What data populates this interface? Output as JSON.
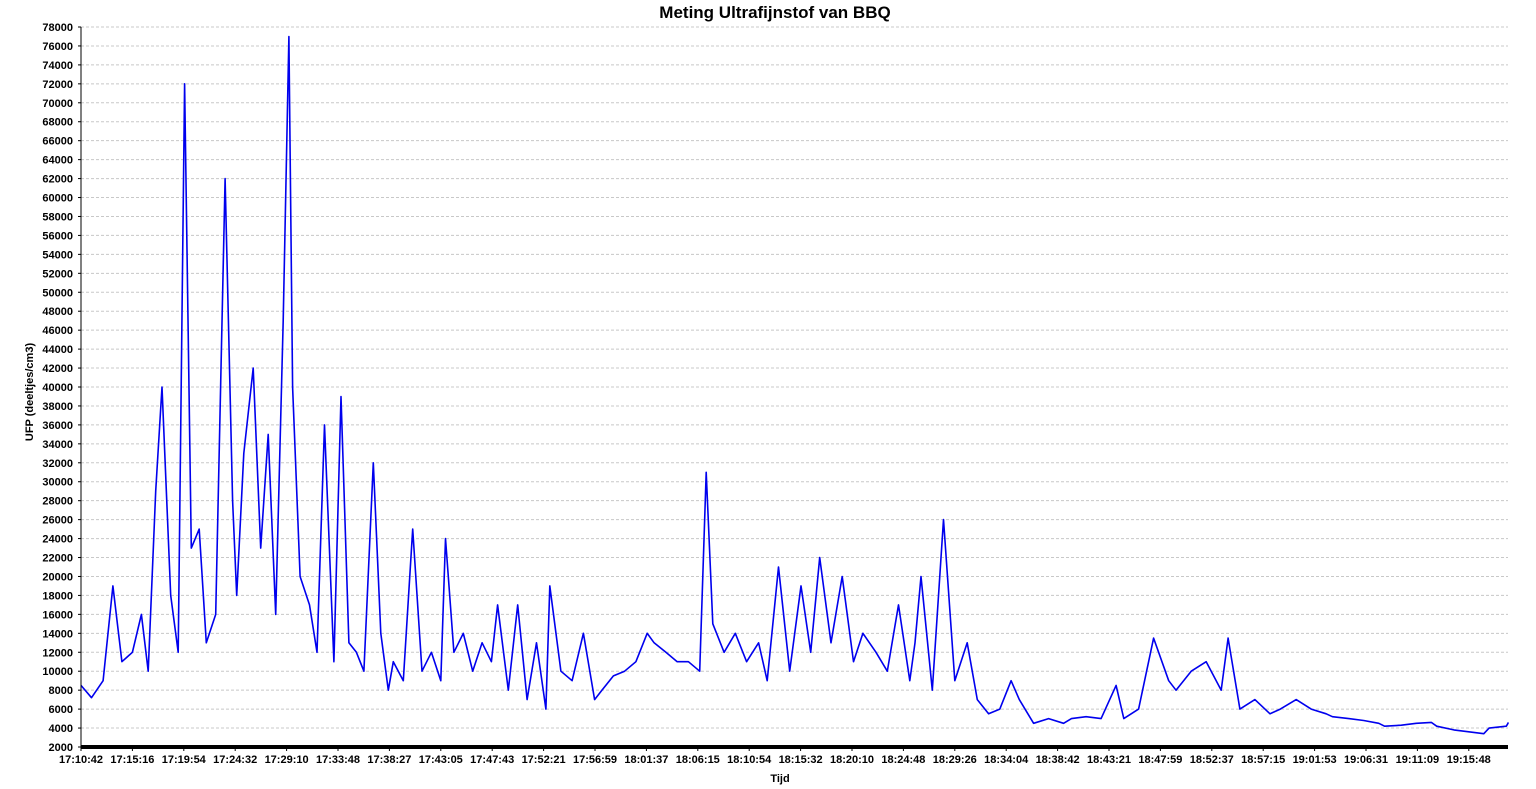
{
  "chart_data": {
    "type": "line",
    "title": "Meting Ultrafijnstof van BBQ",
    "xlabel": "Tijd",
    "ylabel": "UFP (deeltjes/cm3)",
    "ylim": [
      2000,
      78000
    ],
    "ytick_step": 2000,
    "grid": "horizontal",
    "x_tick_labels": [
      "17:10:42",
      "17:15:16",
      "17:19:54",
      "17:24:32",
      "17:29:10",
      "17:33:48",
      "17:38:27",
      "17:43:05",
      "17:47:43",
      "17:52:21",
      "17:56:59",
      "18:01:37",
      "18:06:15",
      "18:10:54",
      "18:15:32",
      "18:20:10",
      "18:24:48",
      "18:29:26",
      "18:34:04",
      "18:38:42",
      "18:43:21",
      "18:47:59",
      "18:52:37",
      "18:57:15",
      "19:01:53",
      "19:06:31",
      "19:11:09",
      "19:15:48"
    ],
    "series": [
      {
        "color": "#0000ee",
        "x": [
          "17:10:42",
          "17:11:38",
          "17:12:40",
          "17:13:32",
          "17:14:20",
          "17:15:16",
          "17:16:04",
          "17:16:40",
          "17:17:20",
          "17:17:54",
          "17:18:40",
          "17:19:20",
          "17:19:54",
          "17:20:30",
          "17:21:12",
          "17:21:50",
          "17:22:40",
          "17:23:30",
          "17:24:10",
          "17:24:32",
          "17:25:10",
          "17:26:00",
          "17:26:40",
          "17:27:20",
          "17:28:00",
          "17:28:40",
          "17:29:10",
          "17:29:30",
          "17:30:10",
          "17:31:00",
          "17:31:40",
          "17:32:20",
          "17:33:10",
          "17:33:48",
          "17:34:30",
          "17:35:10",
          "17:35:50",
          "17:36:40",
          "17:37:20",
          "17:38:00",
          "17:38:27",
          "17:39:20",
          "17:40:10",
          "17:41:00",
          "17:41:50",
          "17:42:40",
          "17:43:05",
          "17:43:50",
          "17:44:40",
          "17:45:30",
          "17:46:20",
          "17:47:10",
          "17:47:43",
          "17:48:40",
          "17:49:30",
          "17:50:20",
          "17:51:10",
          "17:52:00",
          "17:52:21",
          "17:53:20",
          "17:54:20",
          "17:55:20",
          "17:56:20",
          "17:56:59",
          "17:58:00",
          "17:59:00",
          "18:00:00",
          "18:01:00",
          "18:01:37",
          "18:02:40",
          "18:03:40",
          "18:04:40",
          "18:05:40",
          "18:06:15",
          "18:06:50",
          "18:07:50",
          "18:08:50",
          "18:09:50",
          "18:10:54",
          "18:11:40",
          "18:12:40",
          "18:13:40",
          "18:14:40",
          "18:15:32",
          "18:16:20",
          "18:17:20",
          "18:18:20",
          "18:19:20",
          "18:20:10",
          "18:21:20",
          "18:22:20",
          "18:23:20",
          "18:24:20",
          "18:24:48",
          "18:25:20",
          "18:26:20",
          "18:27:20",
          "18:28:20",
          "18:29:26",
          "18:30:20",
          "18:31:20",
          "18:32:20",
          "18:33:20",
          "18:34:04",
          "18:35:20",
          "18:36:40",
          "18:38:00",
          "18:38:42",
          "18:40:00",
          "18:41:20",
          "18:42:40",
          "18:43:21",
          "18:44:40",
          "18:46:00",
          "18:47:20",
          "18:47:59",
          "18:49:20",
          "18:50:40",
          "18:52:00",
          "18:52:37",
          "18:53:40",
          "18:55:00",
          "18:56:20",
          "18:57:15",
          "18:58:40",
          "19:00:00",
          "19:01:20",
          "19:01:53",
          "19:03:20",
          "19:04:40",
          "19:06:00",
          "19:06:31",
          "19:08:00",
          "19:09:20",
          "19:10:40",
          "19:11:09",
          "19:12:40",
          "19:14:00",
          "19:15:20",
          "19:15:48",
          "19:17:20",
          "19:18:40",
          "19:19:30"
        ],
        "values": [
          8500,
          7200,
          9000,
          19000,
          11000,
          12000,
          16000,
          10000,
          29000,
          40000,
          18000,
          12000,
          72000,
          23000,
          25000,
          13000,
          16000,
          62000,
          28000,
          18000,
          33000,
          42000,
          23000,
          35000,
          16000,
          47000,
          77000,
          40000,
          20000,
          17000,
          12000,
          36000,
          11000,
          39000,
          13000,
          12000,
          10000,
          32000,
          14000,
          8000,
          11000,
          9000,
          25000,
          10000,
          12000,
          9000,
          24000,
          12000,
          14000,
          10000,
          13000,
          11000,
          17000,
          8000,
          17000,
          7000,
          13000,
          6000,
          19000,
          10000,
          9000,
          14000,
          7000,
          8000,
          9500,
          10000,
          11000,
          14000,
          13000,
          12000,
          11000,
          11000,
          10000,
          31000,
          15000,
          12000,
          14000,
          11000,
          13000,
          9000,
          21000,
          10000,
          19000,
          12000,
          22000,
          13000,
          20000,
          11000,
          14000,
          12000,
          10000,
          17000,
          9000,
          13000,
          20000,
          8000,
          26000,
          9000,
          13000,
          7000,
          5500,
          6000,
          9000,
          7000,
          4500,
          5000,
          4500,
          5000,
          5200,
          5000,
          8500,
          5000,
          6000,
          13500,
          9000,
          8000,
          10000,
          11000,
          8000,
          13500,
          6000,
          7000,
          5500,
          6000,
          7000,
          6000,
          5500,
          5200,
          5000,
          4800,
          4500,
          4200,
          4300,
          4500,
          4600,
          4200,
          3800,
          3600,
          3400,
          4000,
          4200,
          4500,
          4600
        ]
      }
    ]
  }
}
